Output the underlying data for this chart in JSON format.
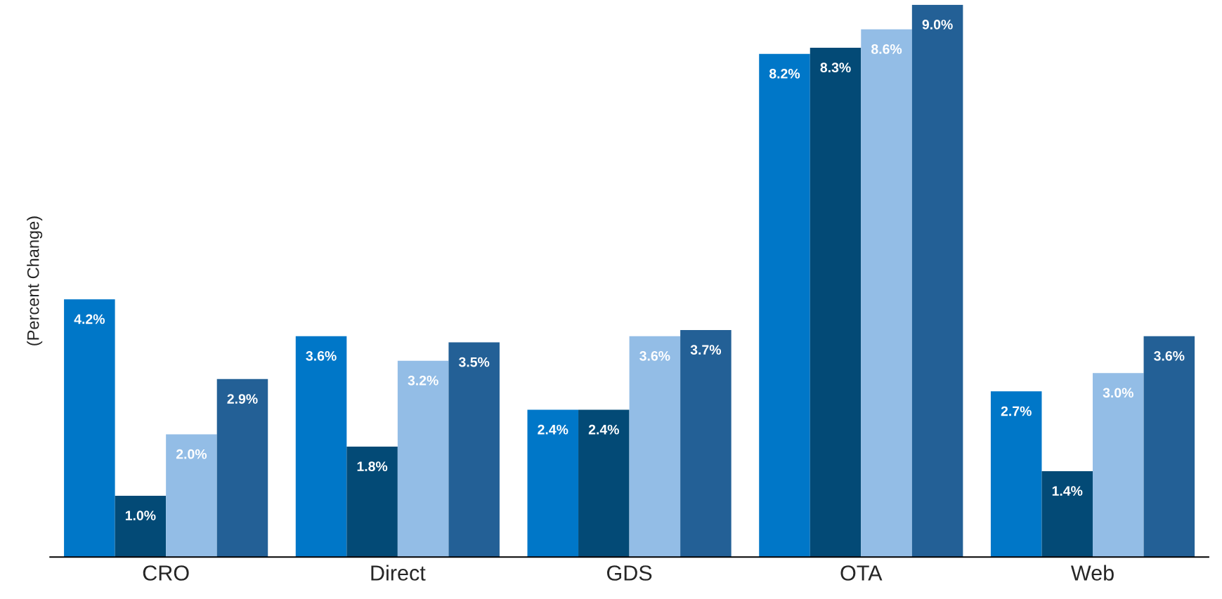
{
  "chart_data": {
    "type": "bar",
    "ylabel": "(Percent Change)",
    "categories": [
      "CRO",
      "Direct",
      "GDS",
      "OTA",
      "Web"
    ],
    "series": [
      {
        "color": "#0077c8",
        "values": [
          4.2,
          3.6,
          2.4,
          8.2,
          2.7
        ],
        "value_labels": [
          "4.2%",
          "3.6%",
          "2.4%",
          "8.2%",
          "2.7%"
        ]
      },
      {
        "color": "#034a76",
        "values": [
          1.0,
          1.8,
          2.4,
          8.3,
          1.4
        ],
        "value_labels": [
          "1.0%",
          "1.8%",
          "2.4%",
          "8.3%",
          "1.4%"
        ]
      },
      {
        "color": "#93bde6",
        "values": [
          2.0,
          3.2,
          3.6,
          8.6,
          3.0
        ],
        "value_labels": [
          "2.0%",
          "3.2%",
          "3.6%",
          "8.6%",
          "3.0%"
        ]
      },
      {
        "color": "#236096",
        "values": [
          2.9,
          3.5,
          3.7,
          9.0,
          3.6
        ],
        "value_labels": [
          "2.9%",
          "3.5%",
          "3.7%",
          "9.0%",
          "3.6%"
        ]
      }
    ],
    "tick_labels": "x"
  }
}
